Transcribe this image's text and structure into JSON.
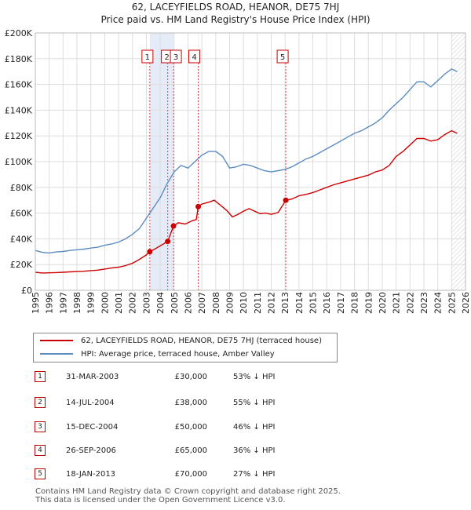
{
  "title_line1": "62, LACEYFIELDS ROAD, HEANOR, DE75 7HJ",
  "title_line2": "Price paid vs. HM Land Registry's House Price Index (HPI)",
  "colors": {
    "property": "#cc0000",
    "hpi": "#5b8cc0",
    "shade": "#e6ecf7",
    "grid": "#dddddd",
    "marker_border": "#cc0000"
  },
  "legend": {
    "property_label": "62, LACEYFIELDS ROAD, HEANOR, DE75 7HJ (terraced house)",
    "hpi_label": "HPI: Average price, terraced house, Amber Valley"
  },
  "transactions": [
    {
      "num": "1",
      "date": "31-MAR-2003",
      "price": "£30,000",
      "hpi": "53% ↓ HPI"
    },
    {
      "num": "2",
      "date": "14-JUL-2004",
      "price": "£38,000",
      "hpi": "55% ↓ HPI"
    },
    {
      "num": "3",
      "date": "15-DEC-2004",
      "price": "£50,000",
      "hpi": "46% ↓ HPI"
    },
    {
      "num": "4",
      "date": "26-SEP-2006",
      "price": "£65,000",
      "hpi": "36% ↓ HPI"
    },
    {
      "num": "5",
      "date": "18-JAN-2013",
      "price": "£70,000",
      "hpi": "27% ↓ HPI"
    }
  ],
  "footer_line1": "Contains HM Land Registry data © Crown copyright and database right 2025.",
  "footer_line2": "This data is licensed under the Open Government Licence v3.0.",
  "chart_data": {
    "type": "line",
    "title": "62, LACEYFIELDS ROAD, HEANOR, DE75 7HJ",
    "subtitle": "Price paid vs. HM Land Registry's House Price Index (HPI)",
    "xlabel": "",
    "ylabel": "",
    "xlim": [
      1995,
      2026
    ],
    "ylim": [
      0,
      200000
    ],
    "x_ticks": [
      "1995",
      "1996",
      "1997",
      "1998",
      "1999",
      "2000",
      "2001",
      "2002",
      "2003",
      "2004",
      "2005",
      "2006",
      "2007",
      "2008",
      "2009",
      "2010",
      "2011",
      "2012",
      "2013",
      "2014",
      "2015",
      "2016",
      "2017",
      "2018",
      "2019",
      "2020",
      "2021",
      "2022",
      "2023",
      "2024",
      "2025",
      "2026"
    ],
    "y_ticks": [
      {
        "value": 0,
        "label": "£0"
      },
      {
        "value": 20000,
        "label": "£20K"
      },
      {
        "value": 40000,
        "label": "£40K"
      },
      {
        "value": 60000,
        "label": "£60K"
      },
      {
        "value": 80000,
        "label": "£80K"
      },
      {
        "value": 100000,
        "label": "£100K"
      },
      {
        "value": 120000,
        "label": "£120K"
      },
      {
        "value": 140000,
        "label": "£140K"
      },
      {
        "value": 160000,
        "label": "£160K"
      },
      {
        "value": 180000,
        "label": "£180K"
      },
      {
        "value": 200000,
        "label": "£200K"
      }
    ],
    "grid": true,
    "shaded_ranges": [
      [
        2003.25,
        2004.96
      ],
      [
        2006.74,
        2006.76
      ]
    ],
    "future_hatch_from": 2025.0,
    "series": [
      {
        "name": "62, LACEYFIELDS ROAD, HEANOR, DE75 7HJ (terraced house)",
        "color": "#cc0000",
        "points": [
          [
            1995.0,
            14000
          ],
          [
            1995.5,
            13500
          ],
          [
            1996.0,
            13600
          ],
          [
            1996.5,
            13800
          ],
          [
            1997.0,
            14000
          ],
          [
            1997.5,
            14300
          ],
          [
            1998.0,
            14600
          ],
          [
            1998.5,
            14800
          ],
          [
            1999.0,
            15300
          ],
          [
            1999.5,
            15700
          ],
          [
            2000.0,
            16500
          ],
          [
            2000.5,
            17300
          ],
          [
            2001.0,
            18000
          ],
          [
            2001.5,
            19200
          ],
          [
            2002.0,
            21000
          ],
          [
            2002.5,
            24000
          ],
          [
            2003.0,
            27500
          ],
          [
            2003.25,
            30000
          ],
          [
            2003.6,
            32000
          ],
          [
            2004.0,
            34500
          ],
          [
            2004.54,
            38000
          ],
          [
            2004.96,
            50000
          ],
          [
            2005.3,
            52500
          ],
          [
            2005.8,
            51500
          ],
          [
            2006.3,
            54000
          ],
          [
            2006.6,
            55000
          ],
          [
            2006.74,
            65000
          ],
          [
            2007.0,
            67000
          ],
          [
            2007.5,
            68500
          ],
          [
            2007.9,
            70000
          ],
          [
            2008.3,
            66500
          ],
          [
            2008.8,
            62000
          ],
          [
            2009.2,
            57000
          ],
          [
            2009.6,
            59000
          ],
          [
            2010.0,
            61500
          ],
          [
            2010.4,
            63500
          ],
          [
            2010.8,
            61500
          ],
          [
            2011.2,
            59500
          ],
          [
            2011.6,
            60000
          ],
          [
            2012.0,
            59000
          ],
          [
            2012.5,
            60500
          ],
          [
            2013.05,
            70000
          ],
          [
            2013.5,
            71000
          ],
          [
            2014.0,
            73500
          ],
          [
            2014.5,
            74500
          ],
          [
            2015.0,
            76000
          ],
          [
            2015.5,
            78000
          ],
          [
            2016.0,
            80000
          ],
          [
            2016.5,
            82000
          ],
          [
            2017.0,
            83500
          ],
          [
            2017.5,
            85000
          ],
          [
            2018.0,
            86500
          ],
          [
            2018.5,
            88000
          ],
          [
            2019.0,
            89500
          ],
          [
            2019.5,
            92000
          ],
          [
            2020.0,
            93500
          ],
          [
            2020.5,
            97000
          ],
          [
            2021.0,
            104000
          ],
          [
            2021.5,
            108000
          ],
          [
            2022.0,
            113000
          ],
          [
            2022.5,
            118000
          ],
          [
            2023.0,
            118000
          ],
          [
            2023.5,
            116000
          ],
          [
            2024.0,
            117000
          ],
          [
            2024.5,
            121000
          ],
          [
            2025.0,
            124000
          ],
          [
            2025.4,
            122000
          ]
        ]
      },
      {
        "name": "HPI: Average price, terraced house, Amber Valley",
        "color": "#5b8cc0",
        "points": [
          [
            1995.0,
            31000
          ],
          [
            1995.5,
            29500
          ],
          [
            1996.0,
            29000
          ],
          [
            1996.5,
            29800
          ],
          [
            1997.0,
            30200
          ],
          [
            1997.5,
            31000
          ],
          [
            1998.0,
            31500
          ],
          [
            1998.5,
            32000
          ],
          [
            1999.0,
            32800
          ],
          [
            1999.5,
            33500
          ],
          [
            2000.0,
            35000
          ],
          [
            2000.5,
            36000
          ],
          [
            2001.0,
            37500
          ],
          [
            2001.5,
            40000
          ],
          [
            2002.0,
            43500
          ],
          [
            2002.5,
            48000
          ],
          [
            2003.0,
            56000
          ],
          [
            2003.5,
            64000
          ],
          [
            2004.0,
            72000
          ],
          [
            2004.5,
            83000
          ],
          [
            2005.0,
            92000
          ],
          [
            2005.5,
            97000
          ],
          [
            2006.0,
            95000
          ],
          [
            2006.5,
            100000
          ],
          [
            2007.0,
            105000
          ],
          [
            2007.5,
            108000
          ],
          [
            2008.0,
            108000
          ],
          [
            2008.5,
            104000
          ],
          [
            2009.0,
            95000
          ],
          [
            2009.5,
            96000
          ],
          [
            2010.0,
            98000
          ],
          [
            2010.5,
            97000
          ],
          [
            2011.0,
            95000
          ],
          [
            2011.5,
            93000
          ],
          [
            2012.0,
            92000
          ],
          [
            2012.5,
            93000
          ],
          [
            2013.0,
            94000
          ],
          [
            2013.5,
            96000
          ],
          [
            2014.0,
            99000
          ],
          [
            2014.5,
            102000
          ],
          [
            2015.0,
            104000
          ],
          [
            2015.5,
            107000
          ],
          [
            2016.0,
            110000
          ],
          [
            2016.5,
            113000
          ],
          [
            2017.0,
            116000
          ],
          [
            2017.5,
            119000
          ],
          [
            2018.0,
            122000
          ],
          [
            2018.5,
            124000
          ],
          [
            2019.0,
            127000
          ],
          [
            2019.5,
            130000
          ],
          [
            2020.0,
            134000
          ],
          [
            2020.5,
            140000
          ],
          [
            2021.0,
            145000
          ],
          [
            2021.5,
            150000
          ],
          [
            2022.0,
            156000
          ],
          [
            2022.5,
            162000
          ],
          [
            2023.0,
            162000
          ],
          [
            2023.5,
            158000
          ],
          [
            2024.0,
            163000
          ],
          [
            2024.5,
            168000
          ],
          [
            2025.0,
            172000
          ],
          [
            2025.4,
            170000
          ]
        ]
      }
    ],
    "markers": [
      {
        "num": "1",
        "x": 2003.25,
        "y": 30000
      },
      {
        "num": "2",
        "x": 2004.54,
        "y": 38000
      },
      {
        "num": "3",
        "x": 2004.96,
        "y": 50000
      },
      {
        "num": "4",
        "x": 2006.74,
        "y": 65000
      },
      {
        "num": "5",
        "x": 2013.05,
        "y": 70000
      }
    ]
  }
}
